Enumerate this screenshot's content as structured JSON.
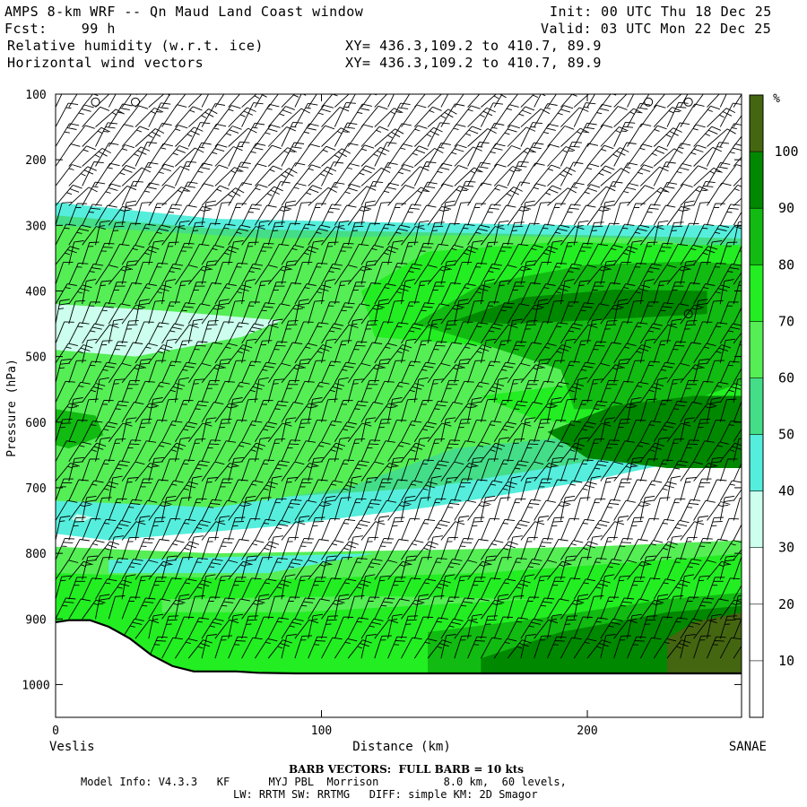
{
  "header": {
    "line1_left": "AMPS 8-km WRF -- Qn Maud Land Coast window",
    "line1_right": "Init: 00 UTC Thu 18 Dec 25",
    "line2_left": "Fcst:    99 h",
    "line2_right": "Valid: 03 UTC Mon 22 Dec 25",
    "line3_left": "Relative humidity (w.r.t. ice)",
    "line3_mid": "XY= 436.3,109.2 to 410.7, 89.9",
    "line4_left": "Horizontal wind vectors",
    "line4_mid": "XY= 436.3,109.2 to 410.7, 89.9"
  },
  "footer": {
    "barb_note": "BARB VECTORS:  FULL BARB = 10 kts",
    "model_line1": "Model Info: V4.3.3   KF      MYJ PBL  Morrison          8.0 km,  60 levels,",
    "model_line2": "LW: RRTM SW: RRTMG   DIFF: simple KM: 2D Smagor"
  },
  "chart_data": {
    "type": "heatmap",
    "title": "Relative humidity (w.r.t. ice)",
    "xlabel": "Distance (km)",
    "ylabel": "Pressure (hPa)",
    "x_start_label": "Veslis",
    "x_end_label": "SANAE",
    "xlim": [
      0,
      258
    ],
    "ylim": [
      1050,
      100
    ],
    "x_ticks": [
      0,
      100,
      200
    ],
    "y_ticks": [
      100,
      200,
      300,
      400,
      500,
      600,
      700,
      800,
      900,
      1000
    ],
    "colorbar": {
      "unit": "%",
      "levels": [
        10,
        20,
        30,
        40,
        50,
        60,
        70,
        80,
        90,
        100
      ],
      "colors": [
        "#ffffff",
        "#ffffff",
        "#ffffff",
        "#ccffee",
        "#55eedd",
        "#44dd88",
        "#55ee55",
        "#22ee22",
        "#11bb11",
        "#008800",
        "#446611"
      ]
    },
    "terrain": [
      [
        0,
        905
      ],
      [
        5,
        902
      ],
      [
        13,
        902
      ],
      [
        20,
        912
      ],
      [
        28,
        930
      ],
      [
        36,
        955
      ],
      [
        44,
        972
      ],
      [
        52,
        980
      ],
      [
        60,
        980
      ],
      [
        68,
        980
      ],
      [
        76,
        982
      ],
      [
        90,
        983
      ],
      [
        110,
        983
      ],
      [
        140,
        983
      ],
      [
        170,
        983
      ],
      [
        200,
        983
      ],
      [
        230,
        983
      ],
      [
        258,
        983
      ]
    ],
    "rh_regions": [
      {
        "level": 40,
        "poly": [
          [
            0,
            265
          ],
          [
            60,
            290
          ],
          [
            120,
            295
          ],
          [
            200,
            300
          ],
          [
            258,
            300
          ],
          [
            258,
            640
          ],
          [
            200,
            690
          ],
          [
            140,
            730
          ],
          [
            80,
            760
          ],
          [
            20,
            780
          ],
          [
            0,
            770
          ]
        ]
      },
      {
        "level": 50,
        "poly": [
          [
            0,
            285
          ],
          [
            60,
            305
          ],
          [
            130,
            310
          ],
          [
            200,
            315
          ],
          [
            258,
            320
          ],
          [
            258,
            600
          ],
          [
            200,
            660
          ],
          [
            140,
            700
          ],
          [
            60,
            720
          ],
          [
            0,
            700
          ]
        ]
      },
      {
        "level": 60,
        "poly": [
          [
            0,
            300
          ],
          [
            80,
            320
          ],
          [
            150,
            315
          ],
          [
            220,
            320
          ],
          [
            258,
            340
          ],
          [
            258,
            580
          ],
          [
            200,
            620
          ],
          [
            150,
            640
          ],
          [
            110,
            700
          ],
          [
            60,
            730
          ],
          [
            0,
            720
          ]
        ]
      },
      {
        "level": 70,
        "poly": [
          [
            115,
            400
          ],
          [
            140,
            340
          ],
          [
            190,
            325
          ],
          [
            240,
            330
          ],
          [
            258,
            330
          ],
          [
            258,
            560
          ],
          [
            210,
            610
          ],
          [
            180,
            595
          ],
          [
            160,
            560
          ],
          [
            200,
            540
          ],
          [
            215,
            500
          ],
          [
            150,
            480
          ],
          [
            120,
            470
          ]
        ]
      },
      {
        "level": 80,
        "poly": [
          [
            135,
            450
          ],
          [
            160,
            390
          ],
          [
            200,
            360
          ],
          [
            240,
            355
          ],
          [
            258,
            360
          ],
          [
            258,
            540
          ],
          [
            230,
            580
          ],
          [
            195,
            580
          ],
          [
            190,
            520
          ],
          [
            160,
            480
          ]
        ]
      },
      {
        "level": 90,
        "poly": [
          [
            150,
            445
          ],
          [
            175,
            410
          ],
          [
            210,
            398
          ],
          [
            245,
            400
          ],
          [
            245,
            435
          ],
          [
            200,
            445
          ],
          [
            170,
            450
          ]
        ]
      },
      {
        "level": 90,
        "poly": [
          [
            185,
            615
          ],
          [
            210,
            575
          ],
          [
            240,
            560
          ],
          [
            258,
            560
          ],
          [
            258,
            670
          ],
          [
            230,
            670
          ],
          [
            200,
            655
          ]
        ]
      },
      {
        "level": 30,
        "poly": [
          [
            0,
            420
          ],
          [
            40,
            430
          ],
          [
            85,
            445
          ],
          [
            70,
            470
          ],
          [
            30,
            500
          ],
          [
            0,
            490
          ]
        ]
      },
      {
        "level": 80,
        "poly": [
          [
            0,
            580
          ],
          [
            15,
            590
          ],
          [
            18,
            620
          ],
          [
            5,
            640
          ],
          [
            0,
            635
          ]
        ]
      },
      {
        "level": 30,
        "poly": [
          [
            8,
            740
          ],
          [
            14,
            745
          ],
          [
            10,
            752
          ],
          [
            6,
            748
          ]
        ]
      },
      {
        "level": 60,
        "poly": [
          [
            0,
            790
          ],
          [
            60,
            800
          ],
          [
            140,
            795
          ],
          [
            200,
            790
          ],
          [
            258,
            780
          ],
          [
            258,
            985
          ],
          [
            0,
            985
          ]
        ]
      },
      {
        "level": 40,
        "poly": [
          [
            20,
            810
          ],
          [
            120,
            800
          ],
          [
            80,
            830
          ],
          [
            20,
            830
          ]
        ]
      },
      {
        "level": 70,
        "poly": [
          [
            0,
            830
          ],
          [
            80,
            840
          ],
          [
            160,
            830
          ],
          [
            230,
            810
          ],
          [
            258,
            800
          ],
          [
            258,
            985
          ],
          [
            0,
            985
          ]
        ]
      },
      {
        "level": 60,
        "poly": [
          [
            40,
            870
          ],
          [
            120,
            865
          ],
          [
            180,
            870
          ],
          [
            90,
            890
          ],
          [
            40,
            890
          ]
        ]
      },
      {
        "level": 80,
        "poly": [
          [
            140,
            920
          ],
          [
            180,
            900
          ],
          [
            230,
            870
          ],
          [
            258,
            860
          ],
          [
            258,
            985
          ],
          [
            140,
            985
          ]
        ]
      },
      {
        "level": 90,
        "poly": [
          [
            160,
            960
          ],
          [
            190,
            920
          ],
          [
            230,
            890
          ],
          [
            258,
            880
          ],
          [
            258,
            985
          ],
          [
            160,
            985
          ]
        ]
      },
      {
        "level": 100,
        "poly": [
          [
            230,
            930
          ],
          [
            240,
            905
          ],
          [
            258,
            890
          ],
          [
            258,
            985
          ],
          [
            230,
            985
          ]
        ]
      }
    ],
    "calm_markers": [
      [
        15,
        112
      ],
      [
        30,
        112
      ],
      [
        223,
        112
      ],
      [
        238,
        112
      ],
      [
        238,
        435
      ]
    ],
    "barb_columns_km": [
      0,
      5,
      10,
      15,
      20,
      25,
      30,
      35,
      40,
      45,
      50,
      55,
      60,
      65,
      70,
      75,
      80,
      85,
      90,
      95,
      100,
      105,
      110,
      115,
      120,
      125,
      130,
      135,
      140,
      145,
      150,
      155,
      160,
      165,
      170,
      175,
      180,
      185,
      190,
      195,
      200,
      205,
      210,
      215,
      220,
      225,
      230,
      235,
      240,
      245,
      250,
      255
    ],
    "barb_levels_hpa": [
      120,
      150,
      180,
      210,
      240,
      270,
      300,
      330,
      360,
      390,
      420,
      450,
      480,
      510,
      540,
      570,
      600,
      630,
      660,
      690,
      720,
      750,
      780,
      810,
      840,
      870,
      900,
      930,
      960
    ]
  }
}
